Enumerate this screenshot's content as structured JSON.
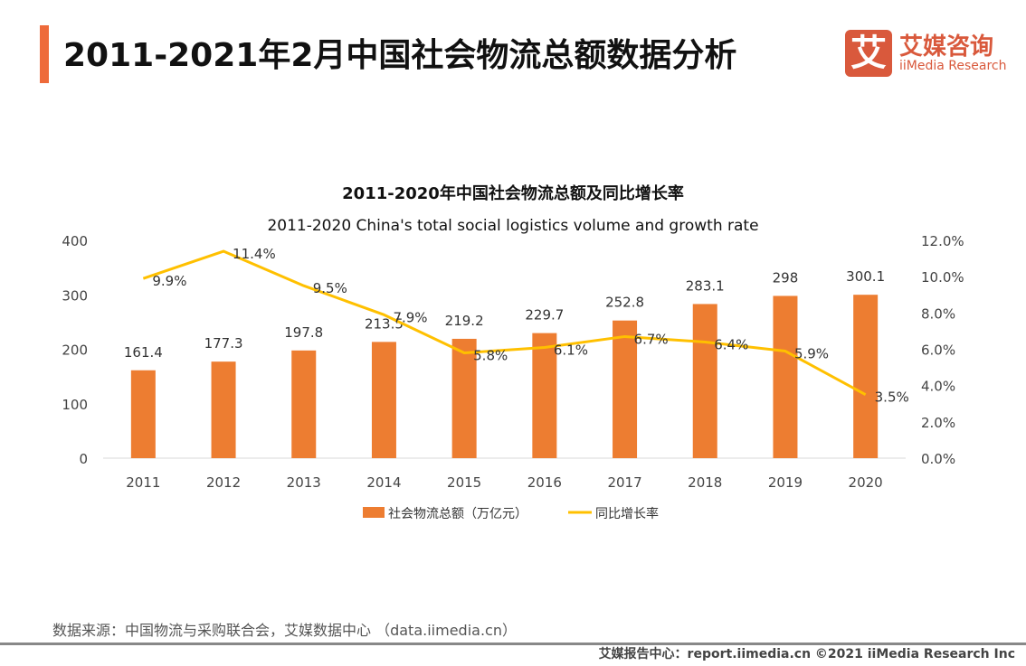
{
  "header": {
    "title": "2011-2021年2月中国社会物流总额数据分析"
  },
  "logo": {
    "mark": "艾",
    "cn": "艾媒咨询",
    "en": "iiMedia Research"
  },
  "chart_data": {
    "type": "bar+line",
    "title": "2011-2020年中国社会物流总额及同比增长率",
    "subtitle": "2011-2020 China's total social logistics volume and growth rate",
    "categories": [
      "2011",
      "2012",
      "2013",
      "2014",
      "2015",
      "2016",
      "2017",
      "2018",
      "2019",
      "2020"
    ],
    "series": [
      {
        "name": "社会物流总额（万亿元）",
        "type": "bar",
        "axis": "left",
        "color": "#ed7d31",
        "values": [
          161.4,
          177.3,
          197.8,
          213.5,
          219.2,
          229.7,
          252.8,
          283.1,
          298,
          300.1
        ],
        "labels": [
          "161.4",
          "177.3",
          "197.8",
          "213.5",
          "219.2",
          "229.7",
          "252.8",
          "283.1",
          "298",
          "300.1"
        ]
      },
      {
        "name": "同比增长率",
        "type": "line",
        "axis": "right",
        "color": "#ffc000",
        "values": [
          9.9,
          11.4,
          9.5,
          7.9,
          5.8,
          6.1,
          6.7,
          6.4,
          5.9,
          3.5
        ],
        "labels": [
          "9.9%",
          "11.4%",
          "9.5%",
          "7.9%",
          "5.8%",
          "6.1%",
          "6.7%",
          "6.4%",
          "5.9%",
          "3.5%"
        ]
      }
    ],
    "y_left": {
      "ylim": [
        0,
        400
      ],
      "ticks": [
        "0",
        "100",
        "200",
        "300",
        "400"
      ]
    },
    "y_right": {
      "ylim": [
        0,
        12
      ],
      "ticks": [
        "0.0%",
        "2.0%",
        "4.0%",
        "6.0%",
        "8.0%",
        "10.0%",
        "12.0%"
      ]
    },
    "grid": false,
    "legend_placement": "bottom"
  },
  "footer": {
    "source": "数据来源：中国物流与采购联合会，艾媒数据中心 （data.iimedia.cn）",
    "credit": "艾媒报告中心：report.iimedia.cn  ©2021  iiMedia Research  Inc"
  }
}
